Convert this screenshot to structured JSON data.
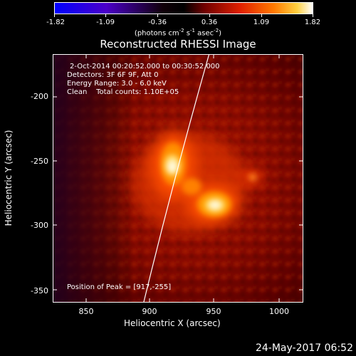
{
  "colorbar": {
    "ticks": [
      "-1.82",
      "-1.09",
      "-0.36",
      "0.36",
      "1.09",
      "1.82"
    ],
    "units_prefix": "(photons cm",
    "units_mid1": " s",
    "units_mid2": " asec",
    "units_suffix": ")",
    "exp_cm": "-2",
    "exp_s": "-1",
    "exp_asec": "-2",
    "colormap": [
      "#0000ff",
      "#5a00b4",
      "#000000",
      "#c00000",
      "#ff6000",
      "#ffb000",
      "#ffffff"
    ]
  },
  "title": "Reconstructed RHESSI Image",
  "info": {
    "time_range": "2-Oct-2014 00:20:52.000 to 00:30:52.000",
    "detectors": "Detectors: 3F 6F 9F, Att 0",
    "energy": "Energy Range: 3.0 - 6.0 keV",
    "clean": "Clean    Total counts: 1.10E+05",
    "peak": "Position of Peak = [917,-255]"
  },
  "axes": {
    "xlabel": "Heliocentric X (arcsec)",
    "ylabel": "Heliocentric Y (arcsec)",
    "xticks": [
      "850",
      "900",
      "950",
      "1000"
    ],
    "yticks": [
      "-200",
      "-250",
      "-300",
      "-350"
    ]
  },
  "timestamp": "24-May-2017 06:52"
}
